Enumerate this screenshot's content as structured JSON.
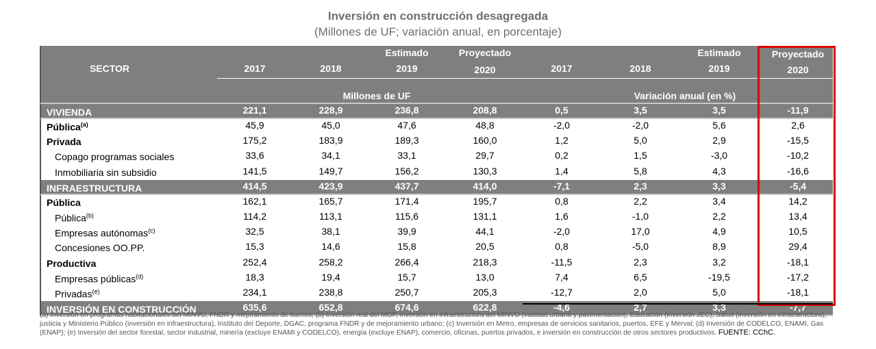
{
  "title": "Inversión en construcción desagregada",
  "subtitle": "(Millones de UF; variación anual, en porcentaje)",
  "header": {
    "sector": "SECTOR",
    "columns": [
      {
        "top": "",
        "year": "2017"
      },
      {
        "top": "",
        "year": "2018"
      },
      {
        "top": "Estimado",
        "year": "2019"
      },
      {
        "top": "Proyectado",
        "year": "2020"
      },
      {
        "top": "",
        "year": "2017"
      },
      {
        "top": "",
        "year": "2018"
      },
      {
        "top": "Estimado",
        "year": "2019"
      },
      {
        "top": "Proyectado",
        "year": "2020"
      }
    ],
    "units_left": "Millones de UF",
    "units_right": "Variación anual (en %)"
  },
  "rows": [
    {
      "label": "VIVIENDA",
      "sup": "",
      "type": "section",
      "values": [
        "221,1",
        "228,9",
        "236,8",
        "208,8",
        "0,5",
        "3,5",
        "3,5",
        "-11,9"
      ]
    },
    {
      "label": "Pública",
      "sup": "(a)",
      "type": "bold",
      "values": [
        "45,9",
        "45,0",
        "47,6",
        "48,8",
        "-2,0",
        "-2,0",
        "5,6",
        "2,6"
      ]
    },
    {
      "label": "Privada",
      "sup": "",
      "type": "bold",
      "values": [
        "175,2",
        "183,9",
        "189,3",
        "160,0",
        "1,2",
        "5,0",
        "2,9",
        "-15,5"
      ]
    },
    {
      "label": "Copago programas sociales",
      "sup": "",
      "type": "indent",
      "values": [
        "33,6",
        "34,1",
        "33,1",
        "29,7",
        "0,2",
        "1,5",
        "-3,0",
        "-10,2"
      ]
    },
    {
      "label": "Inmobiliaria sin subsidio",
      "sup": "",
      "type": "indent",
      "values": [
        "141,5",
        "149,7",
        "156,2",
        "130,3",
        "1,4",
        "5,8",
        "4,3",
        "-16,6"
      ]
    },
    {
      "label": "INFRAESTRUCTURA",
      "sup": "",
      "type": "section",
      "values": [
        "414,5",
        "423,9",
        "437,7",
        "414,0",
        "-7,1",
        "2,3",
        "3,3",
        "-5,4"
      ]
    },
    {
      "label": "Pública",
      "sup": "",
      "type": "bold",
      "values": [
        "162,1",
        "165,7",
        "171,4",
        "195,7",
        "0,8",
        "2,2",
        "3,4",
        "14,2"
      ]
    },
    {
      "label": "Pública",
      "sup": "(b)",
      "type": "indent",
      "values": [
        "114,2",
        "113,1",
        "115,6",
        "131,1",
        "1,6",
        "-1,0",
        "2,2",
        "13,4"
      ]
    },
    {
      "label": "Empresas autónomas",
      "sup": "(c)",
      "type": "indent",
      "values": [
        "32,5",
        "38,1",
        "39,9",
        "44,1",
        "-2,0",
        "17,0",
        "4,9",
        "10,5"
      ]
    },
    {
      "label": "Concesiones OO.PP.",
      "sup": "",
      "type": "indent",
      "values": [
        "15,3",
        "14,6",
        "15,8",
        "20,5",
        "0,8",
        "-5,0",
        "8,9",
        "29,4"
      ]
    },
    {
      "label": "Productiva",
      "sup": "",
      "type": "bold",
      "values": [
        "252,4",
        "258,2",
        "266,4",
        "218,3",
        "-11,5",
        "2,3",
        "3,2",
        "-18,1"
      ]
    },
    {
      "label": "Empresas públicas",
      "sup": "(d)",
      "type": "indent",
      "values": [
        "18,3",
        "19,4",
        "15,7",
        "13,0",
        "7,4",
        "6,5",
        "-19,5",
        "-17,2"
      ]
    },
    {
      "label": "Privadas",
      "sup": "(e)",
      "type": "indent",
      "values": [
        "234,1",
        "238,8",
        "250,7",
        "205,3",
        "-12,7",
        "2,0",
        "5,0",
        "-18,1"
      ]
    },
    {
      "label": "INVERSIÓN EN CONSTRUCCIÓN",
      "sup": "",
      "type": "section",
      "values": [
        "635,6",
        "652,8",
        "674,6",
        "622,8",
        "-4,6",
        "2,7",
        "3,3",
        "-7,7"
      ]
    }
  ],
  "footnote": "(a) Inversión en programas habitacionales del MINVU, FNDR y mejoramiento de barrios; (b) Inversión real del MOP, inversión en infraestructura del MINVU (vialidad urbana y pavimentación), Educación (inversión JEC), Salud (inversión en infraestructura), justicia y Ministerio Público (inversión en infraestructura), Instituto del Deporte, DGAC, programa FNDR y de mejoramiento urbano; (c) Inversión en Metro, empresas de servicios sanitarios, puertos, EFE y Merval; (d) Inversión de CODELCO, ENAMI, Gas (ENAP); (e) Inversión del sector forestal, sector industrial, minería (excluye ENAMI y CODELCO), energía (excluye ENAP), comercio, oficinas, puertos privados, e inversión en construcción de otros sectores productivos.",
  "source": "FUENTE: CChC.",
  "highlight_color": "#e00000",
  "header_bg": "#7f7f7f"
}
